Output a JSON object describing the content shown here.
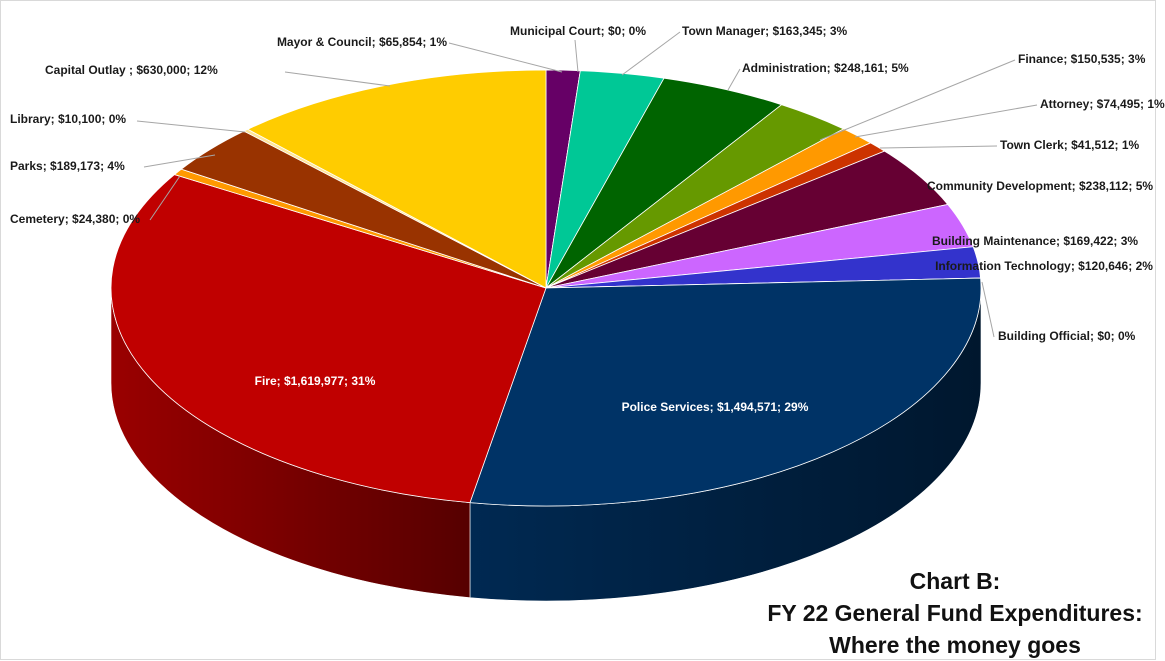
{
  "chart_data": {
    "type": "pie",
    "title": [
      "Chart B:",
      "FY 22 General Fund Expenditures:",
      "Where the money goes"
    ],
    "categories": [
      "Mayor & Council; $65,854; 1%",
      "Municipal Court; $0; 0%",
      "Town Manager; $163,345; 3%",
      "Administration; $248,161; 5%",
      "Finance; $150,535; 3%",
      "Attorney; $74,495; 1%",
      "Town Clerk; $41,512; 1%",
      "Community Development; $238,112; 5%",
      "Building Maintenance; $169,422; 3%",
      "Information Technology; $120,646; 2%",
      "Building Official; $0; 0%",
      "Police Services; $1,494,571; 29%",
      "Fire; $1,619,977; 31%",
      "Cemetery; $24,380; 0%",
      "Parks; $189,173; 4%",
      "Library; $10,100; 0%",
      "Capital Outlay ; $630,000; 12%"
    ],
    "values": [
      65854,
      0,
      163345,
      248161,
      150535,
      74495,
      41512,
      238112,
      169422,
      120646,
      0,
      1494571,
      1619977,
      24380,
      189173,
      10100,
      630000
    ],
    "colors": [
      "#660066",
      "#993366",
      "#00C896",
      "#006400",
      "#669900",
      "#FF9900",
      "#CC3300",
      "#660033",
      "#CC66FF",
      "#3333CC",
      "#3366CC",
      "#003366",
      "#C00000",
      "#FF9900",
      "#993300",
      "#FFE699",
      "#FFCC00"
    ]
  }
}
